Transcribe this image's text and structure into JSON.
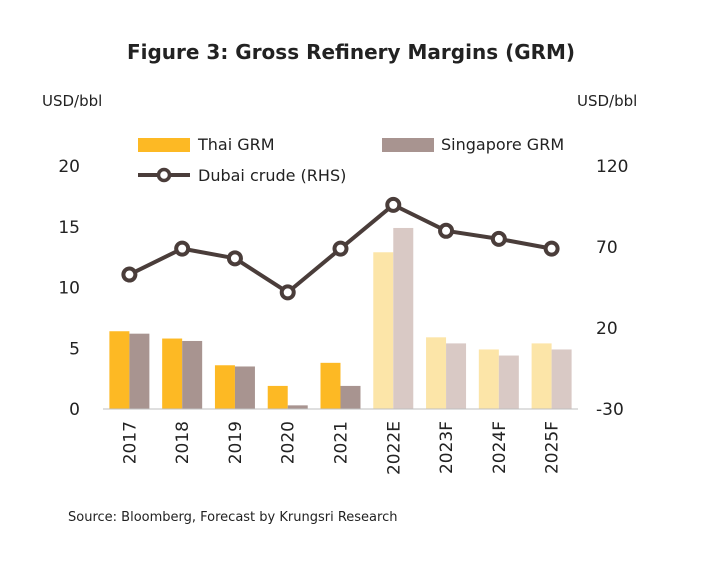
{
  "chart_data": {
    "type": "bar",
    "title": "Figure 3: Gross Refinery Margins  (GRM)",
    "ylabel_left": "USD/bbl",
    "ylabel_right": "USD/bbl",
    "categories": [
      "2017",
      "2018",
      "2019",
      "2020",
      "2021",
      "2022E",
      "2023F",
      "2024F",
      "2025F"
    ],
    "forecast_from_index": 5,
    "y_left": {
      "min": 0,
      "max": 20,
      "ticks": [
        "0",
        "5",
        "10",
        "15",
        "20"
      ]
    },
    "y_right": {
      "min": -30,
      "max": 120,
      "ticks": [
        "-30",
        "20",
        "70",
        "120"
      ]
    },
    "series": [
      {
        "name": "Thai GRM",
        "kind": "bar",
        "axis": "left",
        "color": "#FDB924",
        "forecast_color": "#FCE5A8",
        "values": [
          6.4,
          5.8,
          3.6,
          1.9,
          3.8,
          12.9,
          5.9,
          4.9,
          5.4
        ]
      },
      {
        "name": "Singapore GRM",
        "kind": "bar",
        "axis": "left",
        "color": "#A89490",
        "forecast_color": "#D9C9C5",
        "values": [
          6.2,
          5.6,
          3.5,
          0.3,
          1.9,
          14.9,
          5.4,
          4.4,
          4.9
        ]
      },
      {
        "name": "Dubai crude (RHS)",
        "kind": "line",
        "axis": "right",
        "color": "#4A3D3A",
        "values": [
          53,
          69,
          63,
          42,
          69,
          96,
          80,
          75,
          69
        ]
      }
    ],
    "legend_position": "top",
    "grid": false
  },
  "source": "Source: Bloomberg, Forecast by Krungsri Research"
}
